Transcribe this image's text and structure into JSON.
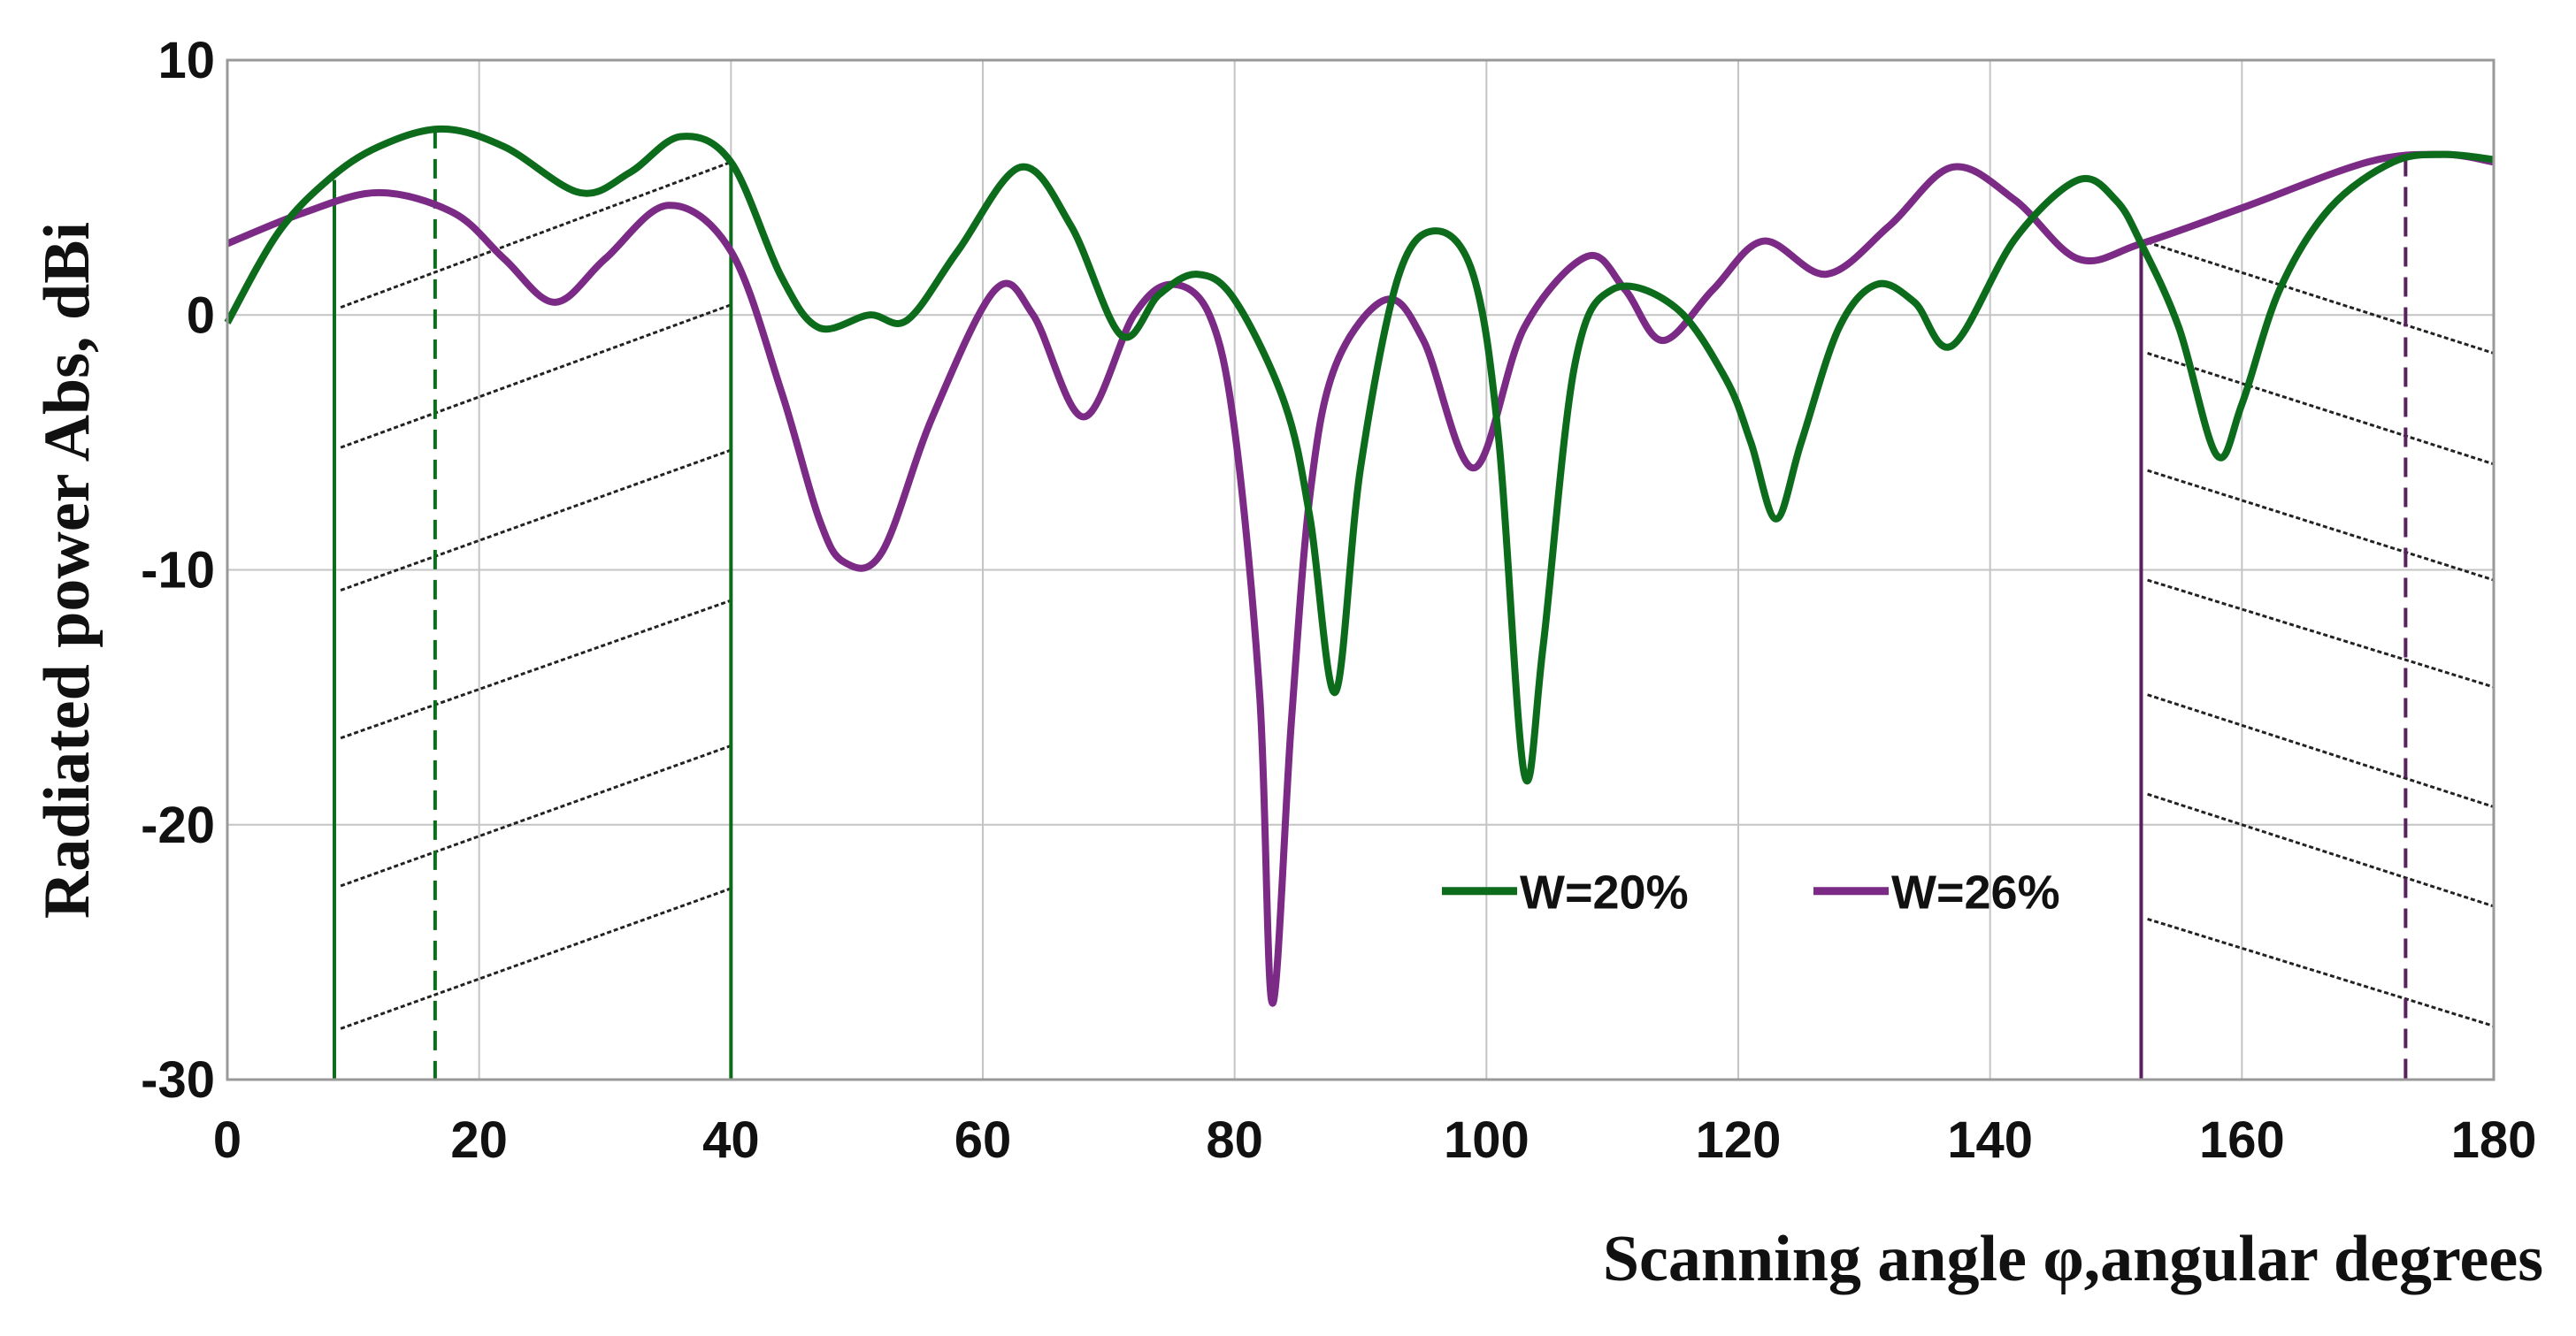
{
  "chart_data": {
    "type": "line",
    "title": "",
    "xlabel": "Scanning angle φ,angular degrees",
    "ylabel": "Radiated power  Abs, dBi",
    "xlim": [
      0,
      180
    ],
    "ylim": [
      -30,
      10
    ],
    "xticks": [
      0,
      20,
      40,
      60,
      80,
      100,
      120,
      140,
      160,
      180
    ],
    "yticks": [
      10,
      0,
      -10,
      -20,
      -30
    ],
    "grid": true,
    "legend_placement": "lower-center",
    "series": [
      {
        "name": "W=20%",
        "color": "#0d6b1c",
        "x": [
          0,
          4,
          8,
          12,
          17,
          22,
          28,
          32,
          36,
          40,
          44,
          47,
          51,
          54,
          58,
          63,
          67,
          71,
          74,
          77,
          80,
          84,
          86,
          88,
          90,
          93,
          96,
          99,
          101,
          103,
          104.5,
          107,
          110,
          115,
          119,
          121,
          123,
          125,
          128,
          131,
          134,
          137,
          142,
          147,
          150,
          152,
          155,
          158,
          160,
          163,
          167,
          172,
          176,
          180
        ],
        "y": [
          -0.3,
          3.2,
          5.3,
          6.6,
          7.3,
          6.6,
          4.8,
          5.6,
          7.0,
          6.0,
          1.5,
          -0.5,
          0.0,
          -0.2,
          2.5,
          5.8,
          3.5,
          -0.8,
          0.8,
          1.6,
          0.6,
          -3.5,
          -8,
          -14.8,
          -6,
          1.5,
          3.3,
          1.5,
          -5,
          -18,
          -13,
          -2,
          1.0,
          0.3,
          -2.5,
          -5,
          -8,
          -5,
          -0.5,
          1.2,
          0.5,
          -1.2,
          3.0,
          5.3,
          4.5,
          2.8,
          -0.5,
          -5.5,
          -3.5,
          1.0,
          4.2,
          6.0,
          6.3,
          6.1
        ]
      },
      {
        "name": "W=26%",
        "color": "#7b2a86",
        "x": [
          0,
          6,
          12,
          18,
          22,
          26,
          30,
          35,
          40,
          44,
          47,
          49,
          52,
          56,
          61,
          64,
          68,
          72,
          75,
          78,
          80,
          82,
          83,
          84.5,
          86,
          88,
          92,
          95,
          99,
          103,
          108,
          111,
          114,
          118,
          122,
          127,
          132,
          137,
          142,
          147,
          152,
          160,
          170,
          176,
          180
        ],
        "y": [
          2.8,
          4.0,
          4.8,
          4.0,
          2.2,
          0.5,
          2.2,
          4.3,
          2.5,
          -3.0,
          -8.0,
          -9.7,
          -9.3,
          -4.0,
          1.0,
          0.0,
          -4.0,
          0.0,
          1.2,
          0.0,
          -4.5,
          -15,
          -27,
          -16,
          -7,
          -2,
          0.6,
          -1.0,
          -6.0,
          -0.5,
          2.3,
          1.0,
          -1.0,
          1.0,
          2.9,
          1.6,
          3.5,
          5.8,
          4.5,
          2.2,
          2.8,
          4.2,
          6.0,
          6.3,
          6.0
        ]
      }
    ],
    "annotations": {
      "left_region": {
        "color": "#0d6b1c",
        "solid_x": [
          8.5,
          40
        ],
        "dashed_x": 16.5,
        "hatch_y_start": [
          0.3,
          -5.2,
          -10.8,
          -16.6,
          -22.4,
          -28.0
        ],
        "hatch_y_end": [
          6.0,
          0.4,
          -5.3,
          -11.2,
          -16.9,
          -22.5
        ]
      },
      "right_region": {
        "color": "#5a2060",
        "solid_x": [
          152
        ],
        "dashed_x": 173,
        "hatch_y_start": [
          2.85,
          -1.5,
          -6.1,
          -10.4,
          -14.9,
          -18.8,
          -23.7
        ],
        "hatch_y_end": [
          -1.5,
          -5.85,
          -10.4,
          -14.6,
          -19.3,
          -23.2,
          -27.9
        ]
      }
    }
  }
}
